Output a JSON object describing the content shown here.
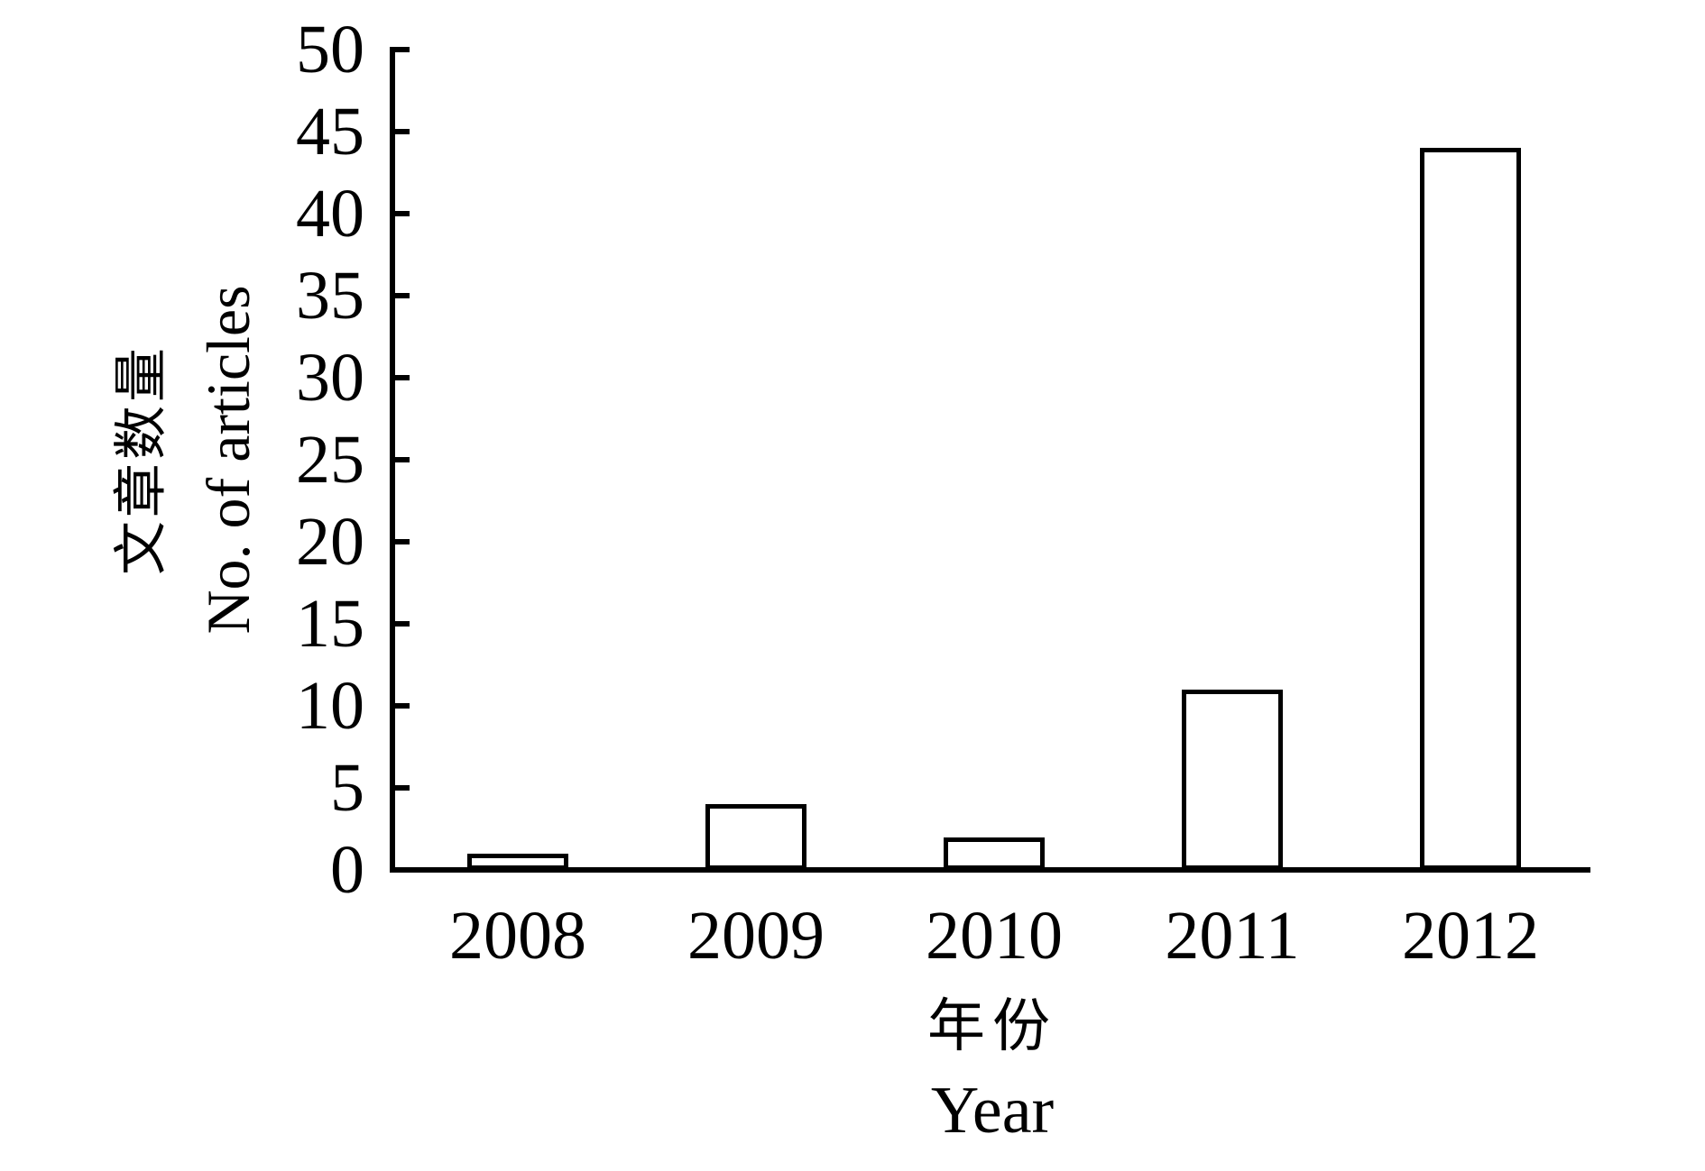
{
  "figure": {
    "background_color": "#ffffff",
    "ink_color": "#000000"
  },
  "chart_data": {
    "type": "bar",
    "title": "",
    "categories": [
      "2008",
      "2009",
      "2010",
      "2011",
      "2012"
    ],
    "values": [
      1,
      4,
      2,
      11,
      44
    ],
    "xlabel_zh": "年份",
    "xlabel_en": "Year",
    "ylabel_zh": "文章数量",
    "ylabel_en": "No. of articles",
    "ylim": [
      0,
      50
    ],
    "yticks": [
      0,
      5,
      10,
      15,
      20,
      25,
      30,
      35,
      40,
      45,
      50
    ],
    "grid": false,
    "legend": "none",
    "bar_fill": "#ffffff",
    "bar_stroke": "#000000"
  }
}
